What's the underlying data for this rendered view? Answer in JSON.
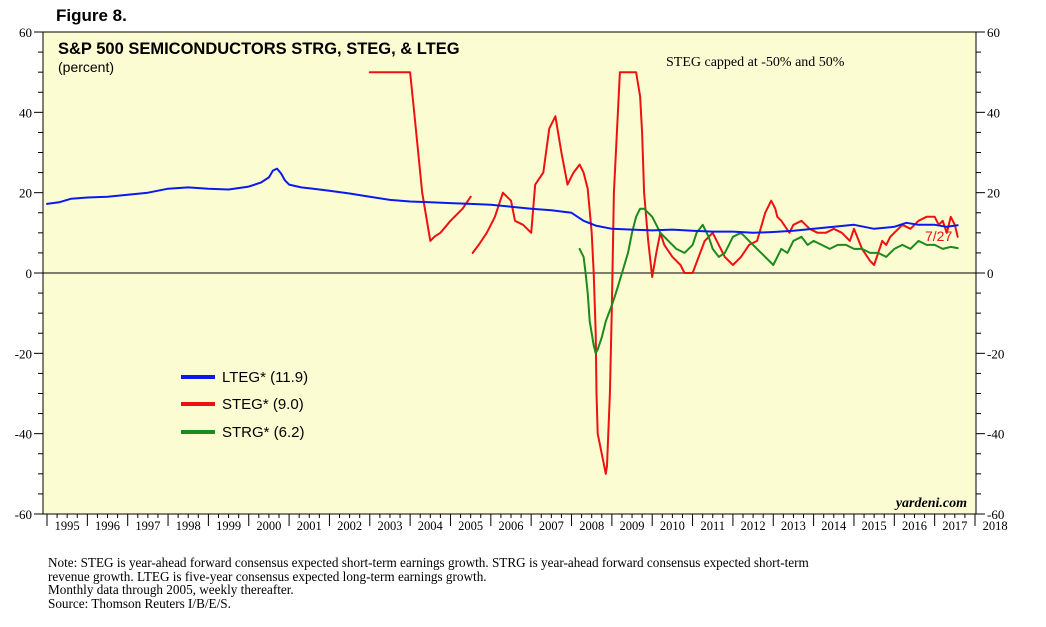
{
  "figure_label": "Figure 8.",
  "colors": {
    "plot_bg": "#fcfcd2",
    "lteg": "#0a1aee",
    "steg": "#ee1111",
    "strg": "#1c8a1c",
    "last_label": "#ee1111"
  },
  "chart_data": {
    "type": "line",
    "title": "S&P 500 SEMICONDUCTORS STRG, STEG, & LTEG",
    "subtitle": "(percent)",
    "annotation": "STEG capped at -50% and 50%",
    "last_date_label": "7/27",
    "watermark": "yardeni.com",
    "ylim": [
      -60,
      60
    ],
    "xlim": [
      1995,
      2018
    ],
    "y_ticks": [
      "60",
      "40",
      "20",
      "0",
      "-20",
      "-40",
      "-60"
    ],
    "y_tick_values": [
      60,
      40,
      20,
      0,
      -20,
      -40,
      -60
    ],
    "x_tick_labels": [
      "1995",
      "1996",
      "1997",
      "1998",
      "1999",
      "2000",
      "2001",
      "2002",
      "2003",
      "2004",
      "2005",
      "2006",
      "2007",
      "2008",
      "2009",
      "2010",
      "2011",
      "2012",
      "2013",
      "2014",
      "2015",
      "2016",
      "2017",
      "2018"
    ],
    "grid": false,
    "zero_line": true,
    "legend_position": "lower-left",
    "series": [
      {
        "name": "LTEG* (11.9)",
        "key": "lteg",
        "x": [
          1995.0,
          1995.3,
          1995.6,
          1996.0,
          1996.5,
          1997.0,
          1997.5,
          1998.0,
          1998.5,
          1999.0,
          1999.5,
          2000.0,
          2000.3,
          2000.5,
          2000.6,
          2000.7,
          2000.8,
          2000.9,
          2001.0,
          2001.3,
          2001.6,
          2002.0,
          2002.5,
          2003.0,
          2003.5,
          2004.0,
          2004.5,
          2005.0,
          2005.5,
          2006.0,
          2006.5,
          2007.0,
          2007.5,
          2008.0,
          2008.3,
          2008.6,
          2009.0,
          2009.5,
          2010.0,
          2010.5,
          2011.0,
          2011.5,
          2012.0,
          2012.5,
          2013.0,
          2013.5,
          2014.0,
          2014.5,
          2015.0,
          2015.5,
          2016.0,
          2016.3,
          2016.6,
          2017.0,
          2017.3,
          2017.57
        ],
        "y": [
          17.2,
          17.6,
          18.5,
          18.8,
          19.0,
          19.5,
          20.0,
          21.0,
          21.3,
          21.0,
          20.8,
          21.5,
          22.5,
          23.8,
          25.5,
          26.0,
          24.8,
          23.0,
          22.0,
          21.3,
          21.0,
          20.5,
          19.8,
          19.0,
          18.2,
          17.8,
          17.6,
          17.4,
          17.2,
          17.0,
          16.5,
          16.0,
          15.6,
          15.0,
          13.0,
          11.8,
          11.0,
          10.8,
          10.6,
          10.8,
          10.5,
          10.3,
          10.3,
          10.0,
          10.2,
          10.5,
          11.0,
          11.5,
          12.0,
          11.0,
          11.5,
          12.5,
          12.0,
          12.0,
          11.5,
          11.9
        ]
      },
      {
        "name": "STEG* (9.0)",
        "key": "steg",
        "segments": [
          {
            "x": [
              2003.0,
              2004.0,
              2004.1,
              2004.3,
              2004.5,
              2004.6,
              2004.75,
              2005.0,
              2005.3,
              2005.5
            ],
            "y": [
              50,
              50,
              40,
              20,
              8,
              9,
              10,
              13,
              16,
              19
            ]
          },
          {
            "x": [
              2005.55,
              2005.7,
              2005.9,
              2006.1,
              2006.3,
              2006.5,
              2006.6,
              2006.8,
              2007.0,
              2007.1,
              2007.3,
              2007.45,
              2007.6,
              2007.75,
              2007.9,
              2008.05,
              2008.2,
              2008.25,
              2008.3,
              2008.4,
              2008.5,
              2008.55,
              2008.6,
              2008.62,
              2008.65,
              2008.85,
              2008.88,
              2008.95,
              2009.0,
              2009.05,
              2009.2,
              2009.6,
              2009.7,
              2009.75,
              2009.8,
              2009.9,
              2010.0,
              2010.1,
              2010.2,
              2010.3,
              2010.5,
              2010.7,
              2010.8,
              2010.9,
              2011.0,
              2011.3,
              2011.5,
              2011.6,
              2011.8,
              2012.0,
              2012.2,
              2012.4,
              2012.6,
              2012.8,
              2012.95,
              2013.0,
              2013.05,
              2013.1,
              2013.2,
              2013.4,
              2013.5,
              2013.7,
              2013.9,
              2014.1,
              2014.3,
              2014.5,
              2014.7,
              2014.9,
              2015.0,
              2015.2,
              2015.4,
              2015.5,
              2015.6,
              2015.7,
              2015.8,
              2015.9,
              2016.0,
              2016.2,
              2016.4,
              2016.5,
              2016.6,
              2016.8,
              2017.0,
              2017.1,
              2017.2,
              2017.3,
              2017.4,
              2017.5,
              2017.57
            ],
            "y": [
              5,
              7,
              10,
              14,
              20,
              18,
              13,
              12,
              10,
              22,
              25,
              36,
              39,
              30,
              22,
              25,
              27,
              26,
              25,
              21,
              10,
              0,
              -15,
              -30,
              -40,
              -50,
              -48,
              -30,
              -8,
              20,
              50,
              50,
              44,
              35,
              20,
              8,
              -1,
              5,
              10,
              7,
              4,
              2,
              0,
              0,
              0,
              8,
              10,
              8,
              4,
              2,
              4,
              7,
              8,
              15,
              18,
              17,
              16,
              14,
              13,
              10,
              12,
              13,
              11,
              10,
              10,
              11,
              10,
              8,
              11,
              6,
              3,
              2,
              5,
              8,
              7,
              9,
              10,
              12,
              11,
              12,
              13,
              14,
              14,
              12,
              13,
              10,
              14,
              12,
              9
            ]
          }
        ]
      },
      {
        "name": "STRG* (6.2)",
        "key": "strg",
        "x": [
          2008.2,
          2008.3,
          2008.35,
          2008.4,
          2008.45,
          2008.5,
          2008.55,
          2008.6,
          2008.65,
          2008.75,
          2008.85,
          2009.0,
          2009.1,
          2009.25,
          2009.4,
          2009.5,
          2009.6,
          2009.7,
          2009.8,
          2009.9,
          2010.0,
          2010.1,
          2010.2,
          2010.3,
          2010.4,
          2010.6,
          2010.8,
          2011.0,
          2011.1,
          2011.25,
          2011.4,
          2011.5,
          2011.65,
          2011.8,
          2011.9,
          2012.0,
          2012.2,
          2012.4,
          2012.6,
          2012.8,
          2013.0,
          2013.1,
          2013.2,
          2013.35,
          2013.5,
          2013.7,
          2013.85,
          2014.0,
          2014.2,
          2014.4,
          2014.6,
          2014.8,
          2015.0,
          2015.2,
          2015.4,
          2015.6,
          2015.8,
          2016.0,
          2016.2,
          2016.4,
          2016.6,
          2016.8,
          2017.0,
          2017.2,
          2017.4,
          2017.57
        ],
        "y": [
          6,
          4,
          0,
          -5,
          -12,
          -15,
          -18,
          -20,
          -19,
          -16,
          -12,
          -8,
          -5,
          0,
          5,
          10,
          14,
          16,
          16,
          15,
          14,
          12,
          10,
          9,
          8,
          6,
          5,
          7,
          10,
          12,
          9,
          6,
          4,
          5,
          7,
          9,
          10,
          8,
          6,
          4,
          2,
          4,
          6,
          5,
          8,
          9,
          7,
          8,
          7,
          6,
          7,
          7,
          6,
          6,
          5,
          5,
          4,
          6,
          7,
          6,
          8,
          7,
          7,
          6,
          6.5,
          6.2
        ]
      }
    ]
  },
  "notes": [
    "Note: STEG is year-ahead forward consensus expected short-term earnings growth. STRG is year-ahead forward consensus expected short-term",
    "revenue growth. LTEG is five-year consensus expected long-term earnings growth.",
    "Monthly data through 2005, weekly thereafter.",
    "Source: Thomson Reuters I/B/E/S."
  ]
}
